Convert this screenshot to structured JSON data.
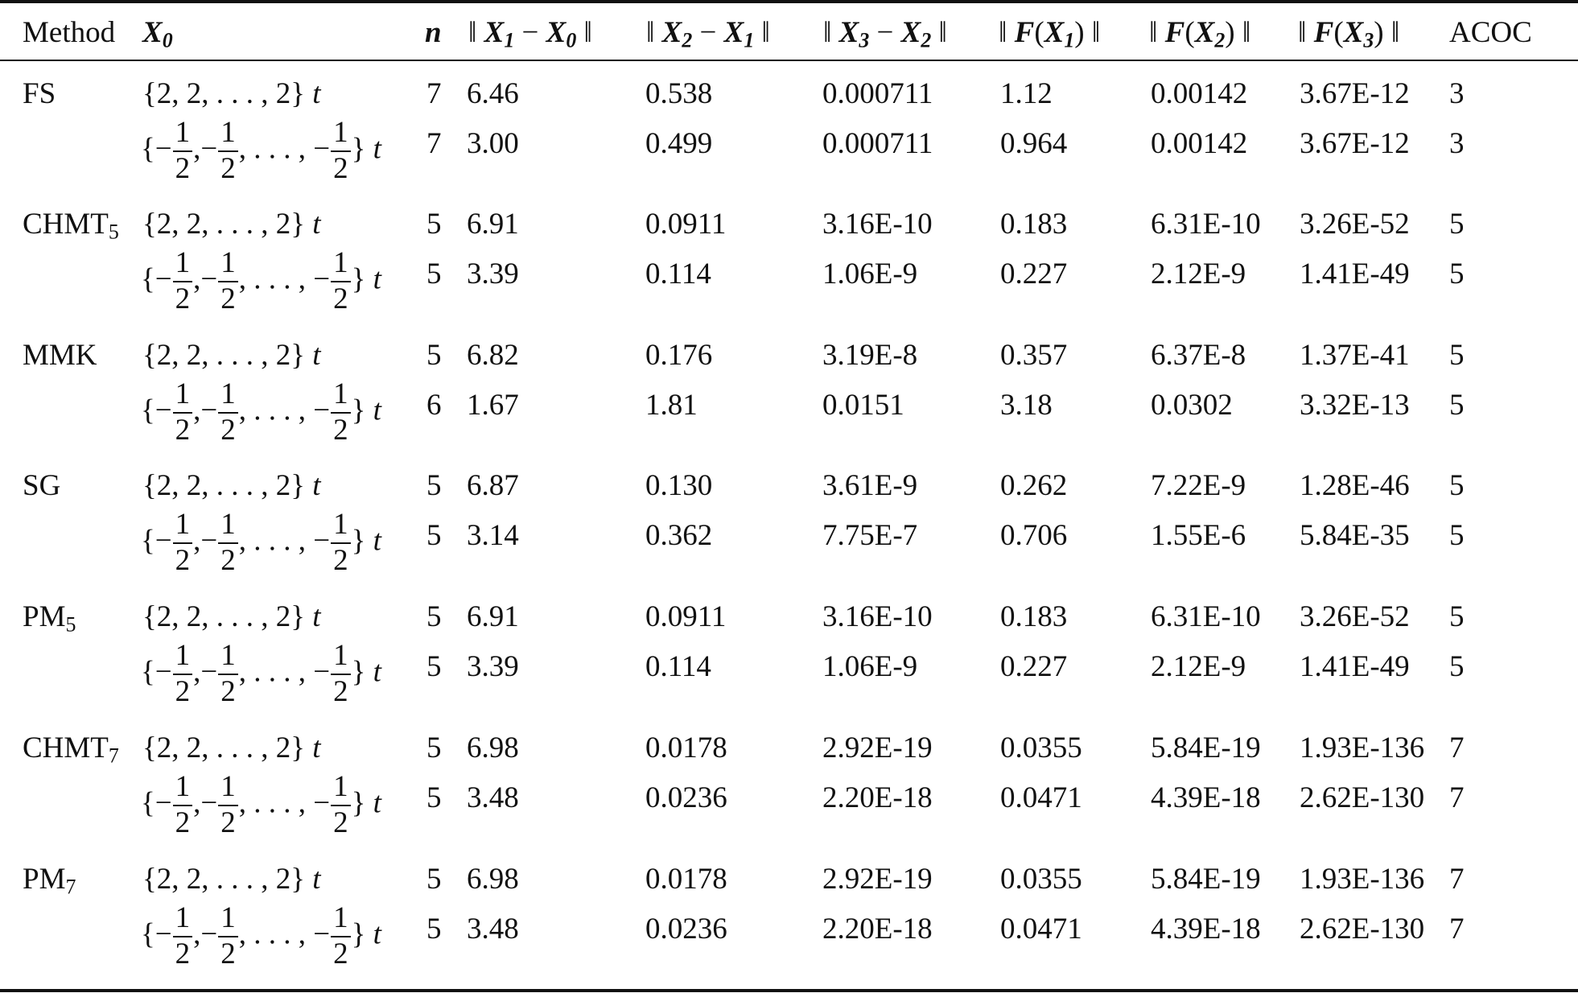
{
  "header": {
    "method": "Method",
    "x0_var": "X",
    "x0_sub": "0",
    "n": "n",
    "d1": {
      "a": "X",
      "as": "1",
      "b": "X",
      "bs": "0"
    },
    "d2": {
      "a": "X",
      "as": "2",
      "b": "X",
      "bs": "1"
    },
    "d3": {
      "a": "X",
      "as": "3",
      "b": "X",
      "bs": "2"
    },
    "f1": {
      "f": "F",
      "x": "X",
      "s": "1"
    },
    "f2": {
      "f": "F",
      "x": "X",
      "s": "2"
    },
    "f3": {
      "f": "F",
      "x": "X",
      "s": "3"
    },
    "acoc": "ACOC"
  },
  "x0_options": {
    "a": {
      "text": "{2, 2, . . . , 2}",
      "t": "t"
    },
    "b": {
      "open": "{",
      "minus": "−",
      "num": "1",
      "den": "2",
      "sep": ",",
      "dots": ". . . ,",
      "close": "}",
      "t": "t"
    }
  },
  "rows": [
    {
      "method": "FS",
      "method_sub": "",
      "x0": "a",
      "n": "7",
      "d1": "6.46",
      "d2": "0.538",
      "d3": "0.000711",
      "f1": "1.12",
      "f2": "0.00142",
      "f3": "3.67E-12",
      "acoc": "3"
    },
    {
      "method": "",
      "method_sub": "",
      "x0": "b",
      "n": "7",
      "d1": "3.00",
      "d2": "0.499",
      "d3": "0.000711",
      "f1": "0.964",
      "f2": "0.00142",
      "f3": "3.67E-12",
      "acoc": "3"
    },
    {
      "method": "CHMT",
      "method_sub": "5",
      "x0": "a",
      "n": "5",
      "d1": "6.91",
      "d2": "0.0911",
      "d3": "3.16E-10",
      "f1": "0.183",
      "f2": "6.31E-10",
      "f3": "3.26E-52",
      "acoc": "5"
    },
    {
      "method": "",
      "method_sub": "",
      "x0": "b",
      "n": "5",
      "d1": "3.39",
      "d2": "0.114",
      "d3": "1.06E-9",
      "f1": "0.227",
      "f2": "2.12E-9",
      "f3": "1.41E-49",
      "acoc": "5"
    },
    {
      "method": "MMK",
      "method_sub": "",
      "x0": "a",
      "n": "5",
      "d1": "6.82",
      "d2": "0.176",
      "d3": "3.19E-8",
      "f1": "0.357",
      "f2": "6.37E-8",
      "f3": "1.37E-41",
      "acoc": "5"
    },
    {
      "method": "",
      "method_sub": "",
      "x0": "b",
      "n": "6",
      "d1": "1.67",
      "d2": "1.81",
      "d3": "0.0151",
      "f1": "3.18",
      "f2": "0.0302",
      "f3": "3.32E-13",
      "acoc": "5"
    },
    {
      "method": "SG",
      "method_sub": "",
      "x0": "a",
      "n": "5",
      "d1": "6.87",
      "d2": "0.130",
      "d3": "3.61E-9",
      "f1": "0.262",
      "f2": "7.22E-9",
      "f3": "1.28E-46",
      "acoc": "5"
    },
    {
      "method": "",
      "method_sub": "",
      "x0": "b",
      "n": "5",
      "d1": "3.14",
      "d2": "0.362",
      "d3": "7.75E-7",
      "f1": "0.706",
      "f2": "1.55E-6",
      "f3": "5.84E-35",
      "acoc": "5"
    },
    {
      "method": "PM",
      "method_sub": "5",
      "x0": "a",
      "n": "5",
      "d1": "6.91",
      "d2": "0.0911",
      "d3": "3.16E-10",
      "f1": "0.183",
      "f2": "6.31E-10",
      "f3": "3.26E-52",
      "acoc": "5"
    },
    {
      "method": "",
      "method_sub": "",
      "x0": "b",
      "n": "5",
      "d1": "3.39",
      "d2": "0.114",
      "d3": "1.06E-9",
      "f1": "0.227",
      "f2": "2.12E-9",
      "f3": "1.41E-49",
      "acoc": "5"
    },
    {
      "method": "CHMT",
      "method_sub": "7",
      "x0": "a",
      "n": "5",
      "d1": "6.98",
      "d2": "0.0178",
      "d3": "2.92E-19",
      "f1": "0.0355",
      "f2": "5.84E-19",
      "f3": "1.93E-136",
      "acoc": "7"
    },
    {
      "method": "",
      "method_sub": "",
      "x0": "b",
      "n": "5",
      "d1": "3.48",
      "d2": "0.0236",
      "d3": "2.20E-18",
      "f1": "0.0471",
      "f2": "4.39E-18",
      "f3": "2.62E-130",
      "acoc": "7"
    },
    {
      "method": "PM",
      "method_sub": "7",
      "x0": "a",
      "n": "5",
      "d1": "6.98",
      "d2": "0.0178",
      "d3": "2.92E-19",
      "f1": "0.0355",
      "f2": "5.84E-19",
      "f3": "1.93E-136",
      "acoc": "7"
    },
    {
      "method": "",
      "method_sub": "",
      "x0": "b",
      "n": "5",
      "d1": "3.48",
      "d2": "0.0236",
      "d3": "2.20E-18",
      "f1": "0.0471",
      "f2": "4.39E-18",
      "f3": "2.62E-130",
      "acoc": "7"
    }
  ]
}
